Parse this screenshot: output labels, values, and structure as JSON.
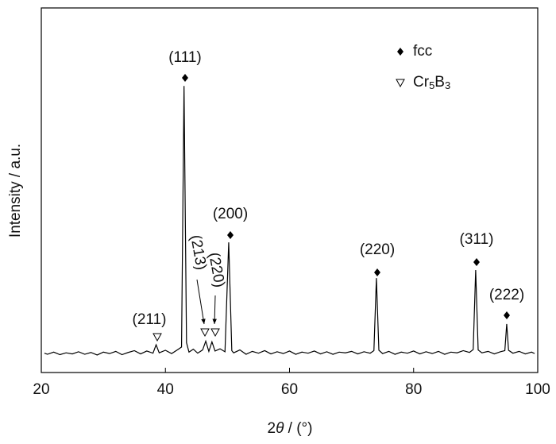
{
  "chart_data": {
    "type": "line",
    "xlabel": "2θ / (°)",
    "ylabel": "Intensity / a.u.",
    "xlim": [
      20,
      100
    ],
    "xticks": [
      20,
      40,
      60,
      80,
      100
    ],
    "ylim": [
      0,
      100
    ],
    "color": "#000000",
    "x": [
      20.5,
      21,
      22,
      23,
      24,
      25,
      26,
      27,
      28,
      29,
      30,
      31,
      32,
      33,
      34,
      35,
      36,
      37,
      38,
      38.5,
      39,
      40,
      41,
      42,
      42.6,
      43,
      43.4,
      43.8,
      44.5,
      45.2,
      46,
      46.5,
      47,
      47.5,
      48,
      48.8,
      49.6,
      50.2,
      50.7,
      51,
      52,
      53,
      54,
      55,
      56,
      57,
      58,
      59,
      60,
      61,
      62,
      63,
      64,
      65,
      66,
      67,
      68,
      69,
      70,
      71,
      72,
      73,
      73.6,
      74,
      74.4,
      75,
      76,
      77,
      78,
      79,
      80,
      81,
      82,
      83,
      84,
      85,
      86,
      87,
      88,
      89,
      89.6,
      90,
      90.4,
      91,
      92,
      93,
      94,
      94.7,
      95,
      95.3,
      96,
      97,
      98,
      99,
      99.5
    ],
    "values": [
      5.3,
      5.0,
      5.6,
      4.9,
      5.4,
      5.1,
      5.7,
      5.0,
      5.5,
      4.8,
      5.6,
      5.2,
      5.8,
      4.9,
      5.5,
      6.0,
      5.1,
      5.9,
      5.3,
      7.6,
      5.4,
      6.1,
      5.2,
      6.3,
      7.0,
      78.6,
      8.2,
      5.6,
      6.4,
      5.3,
      6.2,
      8.6,
      5.8,
      8.4,
      5.9,
      6.5,
      5.7,
      35.7,
      6.0,
      5.4,
      6.2,
      5.0,
      5.8,
      5.3,
      6.0,
      5.1,
      5.7,
      5.2,
      5.9,
      5.0,
      5.6,
      5.3,
      5.9,
      5.1,
      5.7,
      5.0,
      5.6,
      5.4,
      5.8,
      5.1,
      5.7,
      5.3,
      6.0,
      25.9,
      6.1,
      5.2,
      5.8,
      5.0,
      5.6,
      5.3,
      5.9,
      5.1,
      5.7,
      5.2,
      5.8,
      5.0,
      5.6,
      5.4,
      6.0,
      5.5,
      6.3,
      28.1,
      6.2,
      5.4,
      5.8,
      5.1,
      5.7,
      6.0,
      13.3,
      6.1,
      5.3,
      5.8,
      5.1,
      5.6,
      5.2
    ],
    "legend": [
      {
        "name": "fcc",
        "marker": "diamond"
      },
      {
        "name": "Cr5B3",
        "marker": "triangle"
      }
    ],
    "annotations": [
      {
        "text": "(111)",
        "marker": "diamond"
      },
      {
        "text": "(200)",
        "marker": "diamond"
      },
      {
        "text": "(220)",
        "marker": "diamond"
      },
      {
        "text": "(311)",
        "marker": "diamond"
      },
      {
        "text": "(222)",
        "marker": "diamond"
      },
      {
        "text": "(211)",
        "marker": "triangle"
      },
      {
        "text": "(213)",
        "marker": "triangle"
      },
      {
        "text": "(220)",
        "marker": "triangle"
      }
    ]
  }
}
